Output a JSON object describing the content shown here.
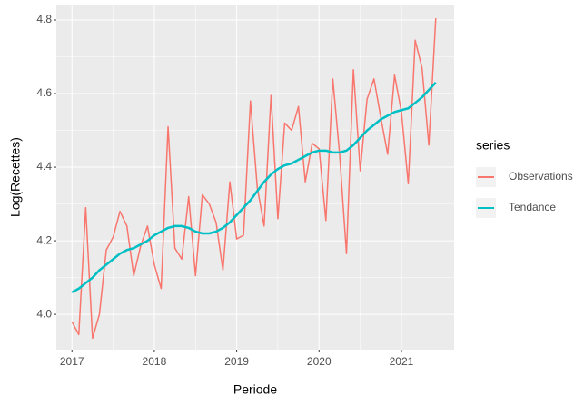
{
  "chart_data": {
    "type": "line",
    "x_label": "Periode",
    "y_label": "Log(Recettes)",
    "legend_title": "series",
    "legend_position": "right",
    "x": [
      2017,
      2017.083,
      2017.167,
      2017.25,
      2017.333,
      2017.417,
      2017.5,
      2017.583,
      2017.667,
      2017.75,
      2017.833,
      2017.917,
      2018,
      2018.083,
      2018.167,
      2018.25,
      2018.333,
      2018.417,
      2018.5,
      2018.583,
      2018.667,
      2018.75,
      2018.833,
      2018.917,
      2019,
      2019.083,
      2019.167,
      2019.25,
      2019.333,
      2019.417,
      2019.5,
      2019.583,
      2019.667,
      2019.75,
      2019.833,
      2019.917,
      2020,
      2020.083,
      2020.167,
      2020.25,
      2020.333,
      2020.417,
      2020.5,
      2020.583,
      2020.667,
      2020.75,
      2020.833,
      2020.917,
      2021,
      2021.083,
      2021.167,
      2021.25,
      2021.333,
      2021.417
    ],
    "series": [
      {
        "name": "Observations",
        "color": "#F8766D",
        "values": [
          3.98,
          3.945,
          4.29,
          3.935,
          4.0,
          4.175,
          4.21,
          4.28,
          4.24,
          4.105,
          4.185,
          4.24,
          4.135,
          4.07,
          4.51,
          4.18,
          4.15,
          4.32,
          4.105,
          4.325,
          4.3,
          4.25,
          4.12,
          4.36,
          4.205,
          4.215,
          4.58,
          4.345,
          4.24,
          4.595,
          4.26,
          4.52,
          4.5,
          4.565,
          4.36,
          4.465,
          4.45,
          4.255,
          4.64,
          4.435,
          4.165,
          4.665,
          4.39,
          4.585,
          4.64,
          4.535,
          4.435,
          4.65,
          4.55,
          4.355,
          4.745,
          4.67,
          4.46,
          4.805
        ]
      },
      {
        "name": "Tendance",
        "color": "#00BFC4",
        "values": [
          4.06,
          4.07,
          4.085,
          4.1,
          4.12,
          4.135,
          4.15,
          4.165,
          4.175,
          4.18,
          4.19,
          4.2,
          4.215,
          4.225,
          4.235,
          4.24,
          4.24,
          4.235,
          4.225,
          4.22,
          4.22,
          4.225,
          4.235,
          4.25,
          4.27,
          4.29,
          4.31,
          4.335,
          4.36,
          4.38,
          4.395,
          4.405,
          4.41,
          4.42,
          4.43,
          4.44,
          4.445,
          4.445,
          4.44,
          4.44,
          4.445,
          4.46,
          4.48,
          4.5,
          4.515,
          4.53,
          4.54,
          4.55,
          4.555,
          4.56,
          4.575,
          4.59,
          4.61,
          4.63
        ]
      }
    ],
    "xlim": [
      2016.81,
      2021.64
    ],
    "xticks": [
      2017,
      2018,
      2019,
      2020,
      2021
    ],
    "ylim": [
      3.904,
      4.842
    ],
    "yticks": [
      {
        "value": 4.0,
        "label": "4.0"
      },
      {
        "value": 4.2,
        "label": "4.2"
      },
      {
        "value": 4.4,
        "label": "4.4"
      },
      {
        "value": 4.6,
        "label": "4.6"
      },
      {
        "value": 4.8,
        "label": "4.8"
      }
    ],
    "grid": true
  }
}
